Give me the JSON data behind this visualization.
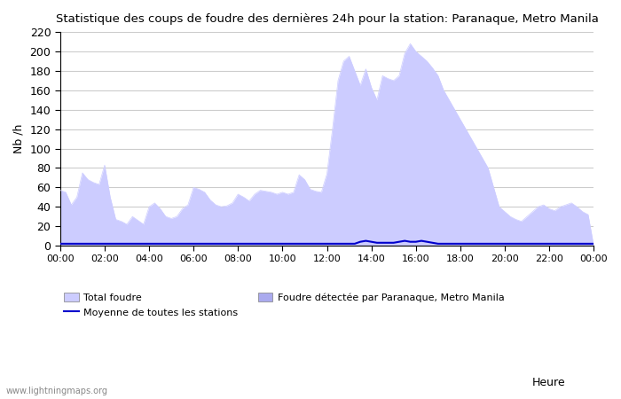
{
  "title": "Statistique des coups de foudre des dernières 24h pour la station: Paranaque, Metro Manila",
  "ylabel": "Nb /h",
  "xlabel": "Heure",
  "ylim": [
    0,
    220
  ],
  "yticks": [
    0,
    20,
    40,
    60,
    80,
    100,
    120,
    140,
    160,
    180,
    200,
    220
  ],
  "xtick_labels": [
    "00:00",
    "02:00",
    "04:00",
    "06:00",
    "08:00",
    "10:00",
    "12:00",
    "14:00",
    "16:00",
    "18:00",
    "20:00",
    "22:00",
    "00:00"
  ],
  "bg_color": "#ffffff",
  "grid_color": "#cccccc",
  "fill_total_color": "#ccccff",
  "fill_station_color": "#aaaaee",
  "line_mean_color": "#0000cc",
  "watermark": "www.lightningmaps.org",
  "legend_total": "Total foudre",
  "legend_station": "Foudre détectée par Paranaque, Metro Manila",
  "legend_mean": "Moyenne de toutes les stations",
  "total_foudre": [
    57,
    55,
    42,
    50,
    75,
    68,
    65,
    63,
    83,
    50,
    27,
    25,
    22,
    30,
    26,
    22,
    40,
    44,
    38,
    30,
    28,
    30,
    38,
    42,
    60,
    58,
    55,
    47,
    42,
    40,
    41,
    44,
    53,
    50,
    46,
    53,
    57,
    56,
    55,
    53,
    55,
    53,
    55,
    73,
    68,
    58,
    56,
    55,
    74,
    120,
    170,
    190,
    195,
    180,
    165,
    182,
    163,
    150,
    175,
    172,
    170,
    175,
    198,
    208,
    200,
    195,
    190,
    183,
    175,
    160,
    150,
    140,
    130,
    120,
    110,
    100,
    90,
    80,
    60,
    40,
    35,
    30,
    27,
    25,
    30,
    35,
    40,
    42,
    38,
    36,
    40,
    42,
    44,
    40,
    35,
    32,
    0
  ],
  "station_foudre": [
    0,
    0,
    0,
    0,
    0,
    0,
    0,
    0,
    0,
    0,
    0,
    0,
    0,
    0,
    0,
    0,
    0,
    0,
    0,
    0,
    0,
    0,
    0,
    0,
    0,
    0,
    0,
    0,
    0,
    0,
    0,
    0,
    0,
    0,
    0,
    0,
    0,
    0,
    0,
    0,
    0,
    0,
    0,
    0,
    0,
    0,
    0,
    0,
    0,
    0,
    0,
    0,
    0,
    0,
    0,
    0,
    0,
    0,
    0,
    0,
    0,
    0,
    0,
    0,
    0,
    0,
    0,
    0,
    0,
    0,
    0,
    0,
    0,
    0,
    0,
    0,
    0,
    0,
    0,
    0,
    0,
    0,
    0,
    0,
    0,
    0,
    0,
    0,
    0,
    0,
    0,
    0,
    0,
    0,
    0,
    0,
    0
  ],
  "mean_line": [
    2,
    2,
    2,
    2,
    2,
    2,
    2,
    2,
    2,
    2,
    2,
    2,
    2,
    2,
    2,
    2,
    2,
    2,
    2,
    2,
    2,
    2,
    2,
    2,
    2,
    2,
    2,
    2,
    2,
    2,
    2,
    2,
    2,
    2,
    2,
    2,
    2,
    2,
    2,
    2,
    2,
    2,
    2,
    2,
    2,
    2,
    2,
    2,
    2,
    2,
    2,
    2,
    2,
    2,
    4,
    5,
    4,
    3,
    3,
    3,
    3,
    4,
    5,
    4,
    4,
    5,
    4,
    3,
    2,
    2,
    2,
    2,
    2,
    2,
    2,
    2,
    2,
    2,
    2,
    2,
    2,
    2,
    2,
    2,
    2,
    2,
    2,
    2,
    2,
    2,
    2,
    2,
    2,
    2,
    2,
    2,
    2
  ]
}
